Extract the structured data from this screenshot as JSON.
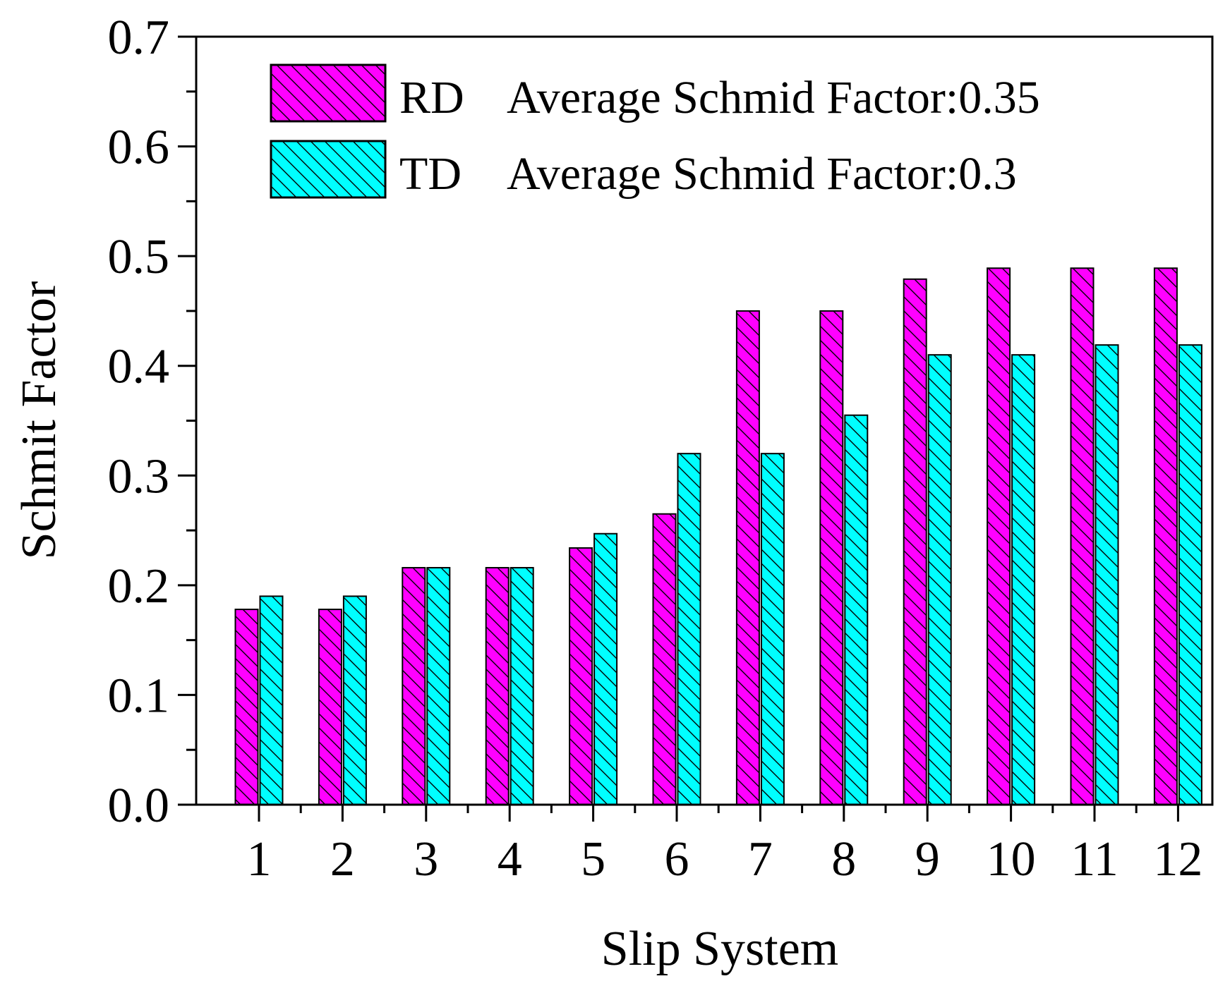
{
  "chart_data": {
    "type": "bar",
    "title": "",
    "xlabel": "Slip System",
    "ylabel": "Schmit Factor",
    "categories": [
      "1",
      "2",
      "3",
      "4",
      "5",
      "6",
      "7",
      "8",
      "9",
      "10",
      "11",
      "12"
    ],
    "ylim": [
      0,
      0.7
    ],
    "yticks": [
      "0.0",
      "0.1",
      "0.2",
      "0.3",
      "0.4",
      "0.5",
      "0.6",
      "0.7"
    ],
    "series": [
      {
        "name": "RD",
        "legend_text": "Average Schmid Factor:0.35",
        "color": "#ff00ff",
        "values": [
          0.178,
          0.178,
          0.216,
          0.216,
          0.234,
          0.265,
          0.45,
          0.45,
          0.479,
          0.489,
          0.489,
          0.489
        ]
      },
      {
        "name": "TD",
        "legend_text": "Average Schmid Factor:0.3",
        "color": "#00ffff",
        "values": [
          0.19,
          0.19,
          0.216,
          0.216,
          0.247,
          0.32,
          0.32,
          0.355,
          0.41,
          0.41,
          0.419,
          0.419
        ]
      }
    ],
    "legend_position": "top",
    "grid": false,
    "pattern": "diagonal-hatch"
  }
}
